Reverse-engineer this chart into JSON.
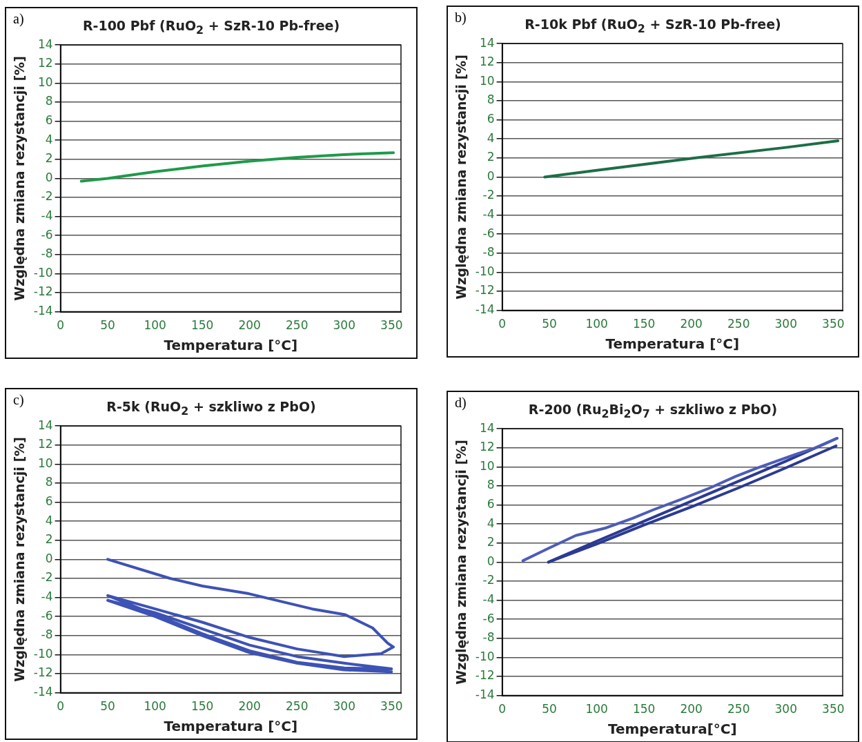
{
  "chart_data": [
    {
      "type": "line",
      "title": "R-100 Pbf (RuO$_{2}$ + SzR-10 Pb-free)",
      "xlabel": "Temperatura [°C]",
      "ylabel": "Względna zmiana rezystancji [%]",
      "annotations": [
        "a)"
      ],
      "xlim": [
        0,
        360
      ],
      "xticks": [
        0,
        50,
        100,
        150,
        200,
        250,
        300,
        350
      ],
      "ylim": [
        -14,
        14
      ],
      "yticks": [
        -14,
        -12,
        -10,
        -8,
        -6,
        -4,
        -2,
        0,
        2,
        4,
        6,
        8,
        10,
        12,
        14
      ],
      "grid": "y",
      "marker": "none",
      "series": [
        {
          "color": "#1f9a4a",
          "x": [
            22,
            50,
            100,
            150,
            200,
            250,
            300,
            352
          ],
          "values": [
            -0.3,
            0,
            0.7,
            1.3,
            1.8,
            2.2,
            2.5,
            2.7
          ]
        }
      ]
    },
    {
      "type": "line",
      "title": "R-10k Pbf (RuO$_{2}$ + SzR-10 Pb-free)",
      "xlabel": "Temperatura [°C]",
      "ylabel": "Względna zmiana rezystancji [%]",
      "annotations": [
        "b)"
      ],
      "xlim": [
        0,
        360
      ],
      "xticks": [
        0,
        50,
        100,
        150,
        200,
        250,
        300,
        350
      ],
      "ylim": [
        -14,
        14
      ],
      "yticks": [
        -14,
        -12,
        -10,
        -8,
        -6,
        -4,
        -2,
        0,
        2,
        4,
        6,
        8,
        10,
        12,
        14
      ],
      "grid": "y",
      "marker": "none",
      "series": [
        {
          "color": "#1d6e45",
          "x": [
            45,
            100,
            200,
            300,
            355
          ],
          "values": [
            0,
            0.7,
            1.95,
            3.1,
            3.8
          ]
        }
      ]
    },
    {
      "type": "line",
      "title": "R-5k (RuO$_{2}$ + szkliwo z PbO)",
      "xlabel": "Temperatura [°C]",
      "ylabel": "Względna zmiana rezystancji [%]",
      "annotations": [
        "c)"
      ],
      "xlim": [
        0,
        360
      ],
      "xticks": [
        0,
        50,
        100,
        150,
        200,
        250,
        300,
        350
      ],
      "ylim": [
        -14,
        14
      ],
      "yticks": [
        -14,
        -12,
        -10,
        -8,
        -6,
        -4,
        -2,
        0,
        2,
        4,
        6,
        8,
        10,
        12,
        14
      ],
      "grid": "y",
      "marker": "none",
      "series": [
        {
          "color": "#3d52b5",
          "x": [
            50,
            116,
            150,
            199,
            266,
            301,
            330,
            346,
            352,
            339,
            300,
            250,
            200,
            150,
            100,
            50,
            100,
            150,
            200,
            250,
            300,
            350,
            300,
            250,
            200,
            150,
            100,
            50,
            100,
            150,
            200,
            250,
            300,
            350
          ],
          "values": [
            0,
            -2.0,
            -2.8,
            -3.6,
            -5.2,
            -5.8,
            -7.2,
            -8.8,
            -9.2,
            -9.9,
            -10.2,
            -9.4,
            -8.2,
            -6.6,
            -5.2,
            -3.8,
            -5.8,
            -7.8,
            -9.6,
            -10.8,
            -11.4,
            -11.5,
            -10.9,
            -10.2,
            -9.0,
            -7.3,
            -5.6,
            -4.3,
            -6.0,
            -8.0,
            -9.8,
            -10.9,
            -11.6,
            -11.8
          ]
        }
      ]
    },
    {
      "type": "line",
      "title": "R-200 (Ru$_{2}$Bi$_{2}$O$_{7}$ + szkliwo z PbO)",
      "xlabel": "Temperatura[°C]",
      "ylabel": "Względna zmiana rezystancji [%]",
      "annotations": [
        "d)"
      ],
      "xlim": [
        0,
        360
      ],
      "xticks": [
        0,
        50,
        100,
        150,
        200,
        250,
        300,
        350
      ],
      "ylim": [
        -14,
        14
      ],
      "yticks": [
        -14,
        -12,
        -10,
        -8,
        -6,
        -4,
        -2,
        0,
        2,
        4,
        6,
        8,
        10,
        12,
        14
      ],
      "grid": "y",
      "marker": "none",
      "series": [
        {
          "color": "#4d5cb8",
          "x": [
            22,
            50,
            78,
            110,
            138,
            160,
            187,
            220,
            247,
            270,
            290,
            310,
            331,
            354
          ],
          "values": [
            0.15,
            1.5,
            2.8,
            3.6,
            4.6,
            5.5,
            6.5,
            7.8,
            9.0,
            9.9,
            10.6,
            11.3,
            12.0,
            13.0
          ]
        },
        {
          "color": "#2b3a93",
          "x": [
            49,
            100,
            150,
            200,
            250,
            300,
            353
          ],
          "values": [
            0,
            1.9,
            3.9,
            5.8,
            7.8,
            9.9,
            12.2
          ]
        },
        {
          "color": "#2b3a93",
          "x": [
            49,
            100,
            150,
            200,
            250,
            300,
            354
          ],
          "values": [
            0,
            2.2,
            4.3,
            6.4,
            8.5,
            10.6,
            13.0
          ]
        }
      ]
    }
  ]
}
